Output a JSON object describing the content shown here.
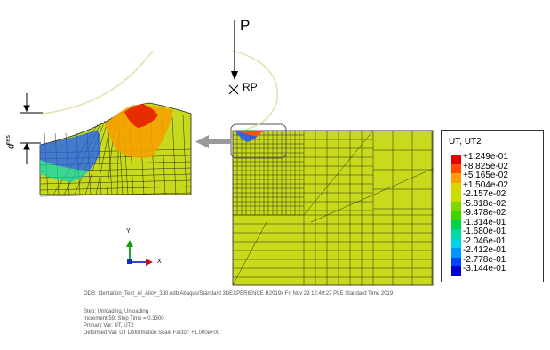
{
  "load": {
    "force_label": "P",
    "reference_point_label": "RP"
  },
  "inset": {
    "depth_label": "d",
    "depth_sup": "res"
  },
  "triad": {
    "y_label": "Y",
    "x_label": "X"
  },
  "legend": {
    "title": "UT, UT2",
    "entries": [
      {
        "value": "+1.249e-01",
        "color": "#e60000"
      },
      {
        "value": "+8.825e-02",
        "color": "#ff4b00"
      },
      {
        "value": "+5.165e-02",
        "color": "#ff9a00"
      },
      {
        "value": "+1.504e-02",
        "color": "#d9d600"
      },
      {
        "value": "-2.157e-02",
        "color": "#c8e000"
      },
      {
        "value": "-5.818e-02",
        "color": "#7dd800"
      },
      {
        "value": "-9.478e-02",
        "color": "#3ed400"
      },
      {
        "value": "-1.314e-01",
        "color": "#00d44a"
      },
      {
        "value": "-1.680e-01",
        "color": "#00d9a0"
      },
      {
        "value": "-2.046e-01",
        "color": "#00d4e6"
      },
      {
        "value": "-2.412e-01",
        "color": "#0096ff"
      },
      {
        "value": "-2.778e-01",
        "color": "#0044ff"
      },
      {
        "value": "-3.144e-01",
        "color": "#0000d0"
      }
    ]
  },
  "info": {
    "odb_line": "ODB: Identation_Test_Al_Alloy_300.odb    Abaqus/Standard 3DEXPERIENCE R2019x    Fri Nov 29 12:49:27 PLE Standard Time 2019",
    "step_line": "Step: Unloading, Unloading",
    "increment_line": "Increment     59: Step Time =    0.3300",
    "primary_var_line": "Primary Var: UT, UT2",
    "deformed_var_line": "Deformed Var: UT   Deformation Scale Factor: +1.000e+00"
  },
  "colors": {
    "mesh_fill": "#c8da1c",
    "mesh_line": "#1a1a1a",
    "indenter": "#e6dfb4",
    "arrow": "#9a9a9a"
  }
}
